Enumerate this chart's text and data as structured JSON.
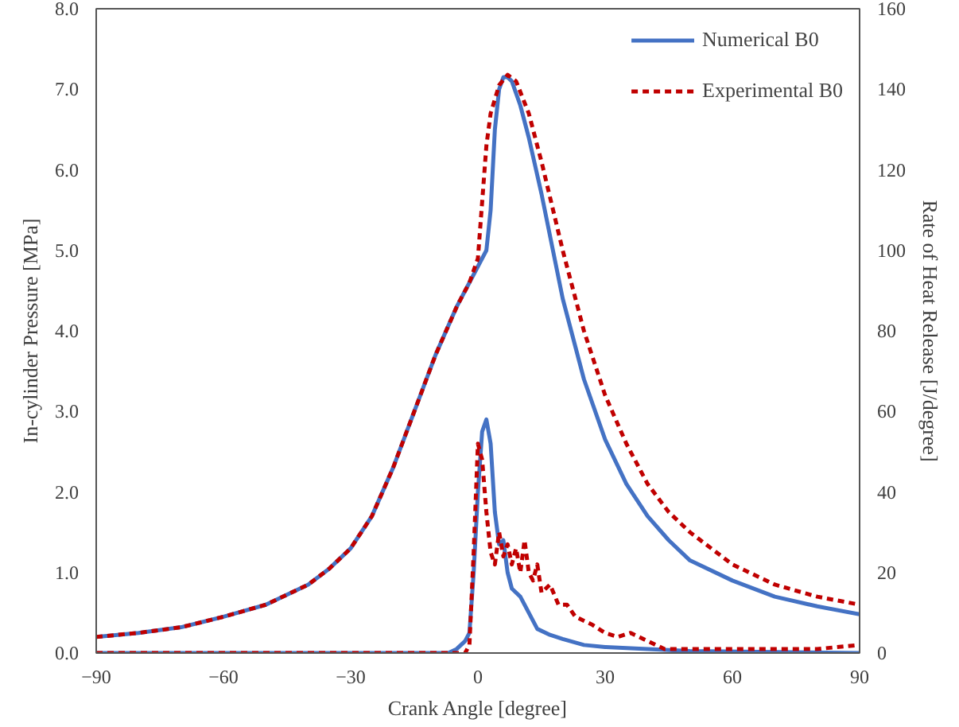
{
  "chart_data": {
    "type": "line",
    "xlabel": "Crank Angle [degree]",
    "ylabel": "In-cylinder Pressure [MPa]",
    "y2label": "Rate of Heat Release [J/degree]",
    "xlim": [
      -90,
      90
    ],
    "xticks": [
      -90,
      -60,
      -30,
      0,
      30,
      60,
      90
    ],
    "ylim": [
      0,
      8
    ],
    "yticks": [
      {
        "value": 0,
        "label": "0.0"
      },
      {
        "value": 1,
        "label": "1.0"
      },
      {
        "value": 2,
        "label": "2.0"
      },
      {
        "value": 3,
        "label": "3.0"
      },
      {
        "value": 4,
        "label": "4.0"
      },
      {
        "value": 5,
        "label": "5.0"
      },
      {
        "value": 6,
        "label": "6.0"
      },
      {
        "value": 7,
        "label": "7.0"
      },
      {
        "value": 8,
        "label": "8.0"
      }
    ],
    "y2lim": [
      0,
      160
    ],
    "y2ticks": [
      0,
      20,
      40,
      60,
      80,
      100,
      120,
      140,
      160
    ],
    "grid": false,
    "legend": "top right",
    "marker": "none",
    "series": [
      {
        "name": "Numerical B0",
        "color": "#4472c4",
        "line_style": "solid",
        "x": [
          -90,
          -80,
          -70,
          -60,
          -50,
          -40,
          -35,
          -30,
          -25,
          -20,
          -15,
          -10,
          -5,
          -2,
          0,
          2,
          3,
          4,
          5,
          6,
          7,
          8,
          10,
          12,
          15,
          20,
          25,
          30,
          35,
          40,
          45,
          50,
          60,
          70,
          80,
          90
        ],
        "values": [
          0.2,
          0.25,
          0.32,
          0.45,
          0.6,
          0.85,
          1.05,
          1.3,
          1.7,
          2.3,
          3.0,
          3.7,
          4.3,
          4.6,
          4.8,
          5.0,
          5.5,
          6.5,
          7.0,
          7.15,
          7.15,
          7.1,
          6.8,
          6.4,
          5.7,
          4.4,
          3.4,
          2.65,
          2.1,
          1.7,
          1.4,
          1.15,
          0.9,
          0.7,
          0.58,
          0.48
        ]
      },
      {
        "name": "Experimental B0",
        "color": "#c00000",
        "line_style": "dashed",
        "x": [
          -90,
          -80,
          -70,
          -60,
          -50,
          -40,
          -35,
          -30,
          -25,
          -20,
          -15,
          -10,
          -5,
          -2,
          0,
          1,
          2,
          3,
          5,
          7,
          9,
          12,
          15,
          20,
          25,
          30,
          35,
          40,
          45,
          50,
          60,
          70,
          80,
          90
        ],
        "values": [
          0.2,
          0.25,
          0.32,
          0.45,
          0.6,
          0.85,
          1.05,
          1.3,
          1.7,
          2.3,
          3.0,
          3.7,
          4.3,
          4.6,
          4.9,
          5.6,
          6.3,
          6.7,
          7.05,
          7.18,
          7.1,
          6.7,
          6.1,
          5.0,
          4.0,
          3.2,
          2.6,
          2.1,
          1.75,
          1.5,
          1.1,
          0.85,
          0.7,
          0.6
        ]
      },
      {
        "color": "#4472c4",
        "line_style": "solid",
        "axis": "y2",
        "x": [
          -90,
          -7,
          -5,
          -3,
          -2,
          -1,
          0,
          1,
          2,
          3,
          4,
          5,
          6,
          7,
          8,
          10,
          12,
          14,
          17,
          20,
          25,
          30,
          40,
          50,
          90
        ],
        "values": [
          0,
          0,
          1,
          3,
          5,
          20,
          40,
          55,
          58,
          52,
          35,
          27,
          28,
          20,
          16,
          14,
          10,
          6,
          4.5,
          3.5,
          2,
          1.5,
          1,
          0.5,
          0
        ]
      },
      {
        "color": "#c00000",
        "line_style": "dashed",
        "axis": "y2",
        "x": [
          -90,
          -3,
          -2,
          -1,
          0,
          1,
          2,
          3,
          4,
          5,
          6,
          7,
          8,
          9,
          10,
          11,
          12,
          13,
          14,
          15,
          17,
          19,
          21,
          23,
          25,
          27,
          30,
          33,
          36,
          40,
          44,
          50,
          60,
          70,
          80,
          90
        ],
        "values": [
          0,
          0,
          2,
          25,
          52,
          48,
          35,
          25,
          22,
          30,
          24,
          27,
          22,
          26,
          20,
          28,
          20,
          18,
          22,
          15,
          17,
          12,
          12,
          9,
          8,
          7,
          5,
          4,
          5,
          3,
          1,
          1,
          1,
          1,
          1,
          2
        ]
      }
    ]
  }
}
